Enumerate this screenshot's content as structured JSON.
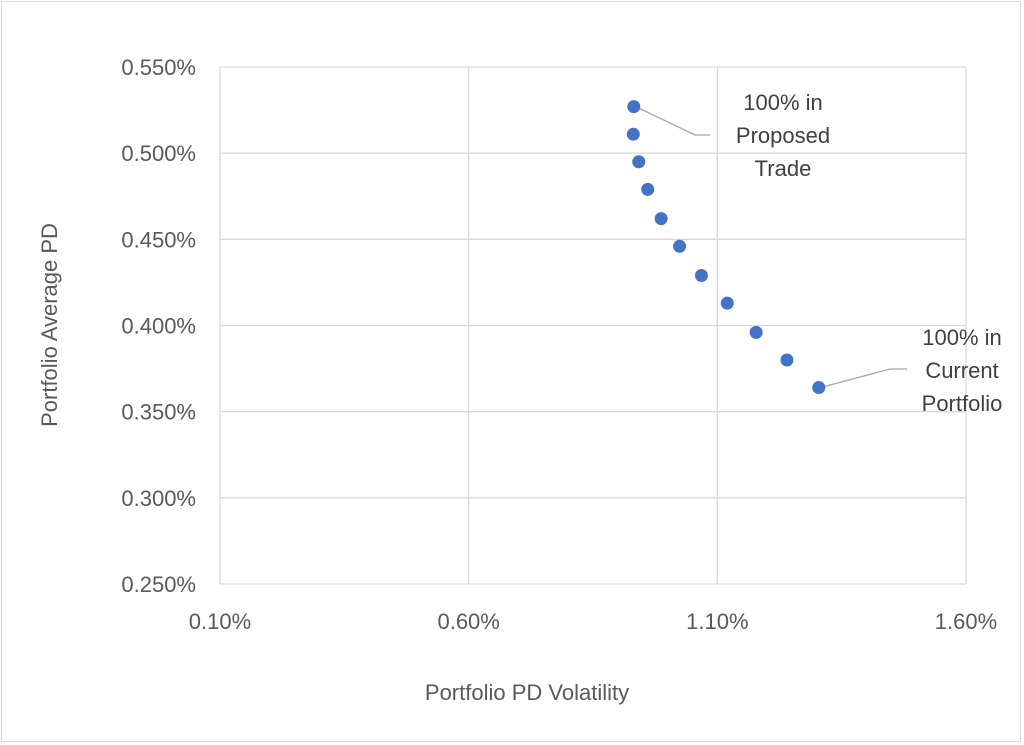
{
  "chart_data": {
    "type": "scatter",
    "title": "",
    "xlabel": "Portfolio PD Volatility",
    "ylabel": "Portfolio Average PD",
    "xlim": [
      0.1,
      1.6
    ],
    "ylim": [
      0.25,
      0.55
    ],
    "x_ticks": [
      "0.10%",
      "0.60%",
      "1.10%",
      "1.60%"
    ],
    "y_ticks": [
      "0.550%",
      "0.500%",
      "0.450%",
      "0.400%",
      "0.350%",
      "0.300%",
      "0.250%"
    ],
    "grid": true,
    "legend": "none",
    "marker_color": "#4472C4",
    "series": [
      {
        "x": [
          0.932,
          0.931,
          0.942,
          0.96,
          0.987,
          1.024,
          1.068,
          1.12,
          1.178,
          1.24,
          1.304
        ],
        "y": [
          0.527,
          0.511,
          0.495,
          0.479,
          0.462,
          0.446,
          0.429,
          0.413,
          0.396,
          0.38,
          0.364
        ]
      }
    ],
    "annotations": [
      {
        "lines": [
          "100% in",
          "Proposed",
          "Trade"
        ],
        "point_index": 0
      },
      {
        "lines": [
          "100% in",
          "Current",
          "Portfolio"
        ],
        "point_index": 10
      }
    ]
  }
}
